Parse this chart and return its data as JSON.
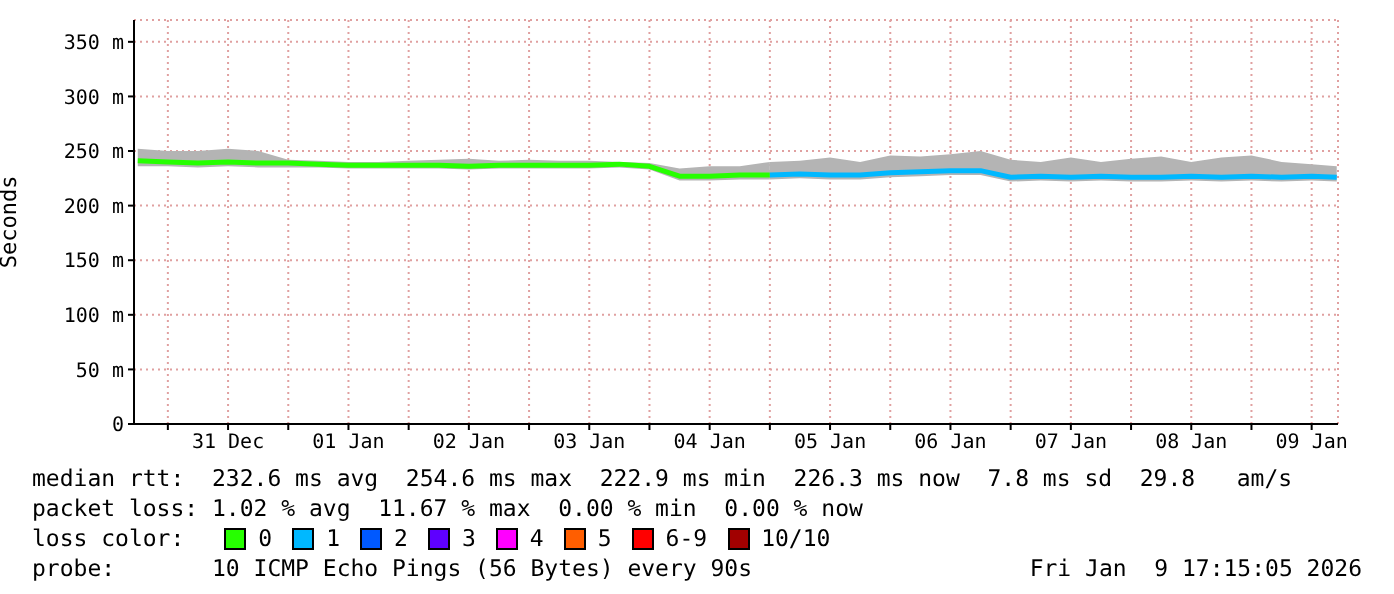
{
  "chart_data": {
    "type": "line",
    "ylabel": "Seconds",
    "legend_title": "loss color:",
    "legend": "bottom",
    "grid": true,
    "marker": "none",
    "line_style": "solid",
    "x": [
      "2025-12-30T18:00",
      "2025-12-31T00:00",
      "2025-12-31T06:00",
      "2025-12-31T12:00",
      "2025-12-31T18:00",
      "2026-01-01T00:00",
      "2026-01-01T06:00",
      "2026-01-01T12:00",
      "2026-01-01T18:00",
      "2026-01-02T00:00",
      "2026-01-02T06:00",
      "2026-01-02T12:00",
      "2026-01-02T18:00",
      "2026-01-03T00:00",
      "2026-01-03T06:00",
      "2026-01-03T12:00",
      "2026-01-03T18:00",
      "2026-01-04T00:00",
      "2026-01-04T06:00",
      "2026-01-04T12:00",
      "2026-01-04T18:00",
      "2026-01-05T00:00",
      "2026-01-05T06:00",
      "2026-01-05T12:00",
      "2026-01-05T18:00",
      "2026-01-06T00:00",
      "2026-01-06T06:00",
      "2026-01-06T12:00",
      "2026-01-06T18:00",
      "2026-01-07T00:00",
      "2026-01-07T06:00",
      "2026-01-07T12:00",
      "2026-01-07T18:00",
      "2026-01-08T00:00",
      "2026-01-08T06:00",
      "2026-01-08T12:00",
      "2026-01-08T18:00",
      "2026-01-09T00:00",
      "2026-01-09T06:00",
      "2026-01-09T12:00",
      "2026-01-09T17:00"
    ],
    "xlim": [
      "2025-12-30T17:15",
      "2026-01-09T17:15"
    ],
    "xticks": [
      {
        "value": "2025-12-31T00:00",
        "label": null
      },
      {
        "value": "2025-12-31T12:00",
        "label": "31 Dec"
      },
      {
        "value": "2026-01-01T00:00",
        "label": null
      },
      {
        "value": "2026-01-01T12:00",
        "label": "01 Jan"
      },
      {
        "value": "2026-01-02T00:00",
        "label": null
      },
      {
        "value": "2026-01-02T12:00",
        "label": "02 Jan"
      },
      {
        "value": "2026-01-03T00:00",
        "label": null
      },
      {
        "value": "2026-01-03T12:00",
        "label": "03 Jan"
      },
      {
        "value": "2026-01-04T00:00",
        "label": null
      },
      {
        "value": "2026-01-04T12:00",
        "label": "04 Jan"
      },
      {
        "value": "2026-01-05T00:00",
        "label": null
      },
      {
        "value": "2026-01-05T12:00",
        "label": "05 Jan"
      },
      {
        "value": "2026-01-06T00:00",
        "label": null
      },
      {
        "value": "2026-01-06T12:00",
        "label": "06 Jan"
      },
      {
        "value": "2026-01-07T00:00",
        "label": null
      },
      {
        "value": "2026-01-07T12:00",
        "label": "07 Jan"
      },
      {
        "value": "2026-01-08T00:00",
        "label": null
      },
      {
        "value": "2026-01-08T12:00",
        "label": "08 Jan"
      },
      {
        "value": "2026-01-09T00:00",
        "label": null
      },
      {
        "value": "2026-01-09T12:00",
        "label": "09 Jan"
      }
    ],
    "ylim": [
      0,
      370
    ],
    "yticks": [
      0,
      {
        "value": 50,
        "label": "50 m"
      },
      {
        "value": 100,
        "label": "100 m"
      },
      {
        "value": 150,
        "label": "150 m"
      },
      {
        "value": 200,
        "label": "200 m"
      },
      {
        "value": 250,
        "label": "250 m"
      },
      {
        "value": 300,
        "label": "300 m"
      },
      {
        "value": 350,
        "label": "350 m"
      }
    ],
    "series": [
      {
        "name": "0",
        "color": "#26ff00",
        "values": [
          241,
          240,
          239,
          240,
          239,
          239,
          238,
          237,
          237,
          237,
          237,
          236,
          237,
          237,
          237,
          237,
          238,
          236,
          227,
          227,
          228,
          228,
          null,
          null,
          null,
          null,
          null,
          null,
          null,
          null,
          null,
          null,
          null,
          null,
          null,
          null,
          null,
          null,
          null,
          null,
          null
        ],
        "lower": [
          236,
          236,
          235,
          236,
          235,
          235,
          235,
          234,
          234,
          234,
          234,
          233,
          234,
          234,
          234,
          234,
          235,
          233,
          223,
          223,
          224,
          224,
          null,
          null,
          null,
          null,
          null,
          null,
          null,
          null,
          null,
          null,
          null,
          null,
          null,
          null,
          null,
          null,
          null,
          null,
          null
        ],
        "upper": [
          252,
          250,
          250,
          252,
          250,
          242,
          241,
          240,
          240,
          241,
          242,
          243,
          241,
          242,
          241,
          241,
          240,
          239,
          234,
          236,
          236,
          240,
          null,
          null,
          null,
          null,
          null,
          null,
          null,
          null,
          null,
          null,
          null,
          null,
          null,
          null,
          null,
          null,
          null,
          null,
          null
        ]
      },
      {
        "name": "1",
        "color": "#00b8ff",
        "values": [
          null,
          null,
          null,
          null,
          null,
          null,
          null,
          null,
          null,
          null,
          null,
          null,
          null,
          null,
          null,
          null,
          null,
          null,
          null,
          null,
          null,
          228,
          229,
          228,
          228,
          230,
          231,
          232,
          232,
          226,
          227,
          226,
          227,
          226,
          226,
          227,
          226,
          227,
          226,
          227,
          226
        ],
        "lower": [
          null,
          null,
          null,
          null,
          null,
          null,
          null,
          null,
          null,
          null,
          null,
          null,
          null,
          null,
          null,
          null,
          null,
          null,
          null,
          null,
          null,
          224,
          225,
          224,
          224,
          226,
          227,
          228,
          228,
          222,
          223,
          222,
          223,
          222,
          222,
          223,
          222,
          223,
          222,
          223,
          222
        ],
        "upper": [
          null,
          null,
          null,
          null,
          null,
          null,
          null,
          null,
          null,
          null,
          null,
          null,
          null,
          null,
          null,
          null,
          null,
          null,
          null,
          null,
          null,
          240,
          241,
          244,
          240,
          246,
          245,
          247,
          250,
          242,
          240,
          244,
          240,
          243,
          245,
          240,
          244,
          246,
          240,
          238,
          236
        ]
      },
      {
        "name": "2",
        "color": "#0059ff",
        "values": [
          null,
          null,
          null,
          null,
          null,
          null,
          null,
          null,
          null,
          null,
          null,
          null,
          null,
          null,
          null,
          null,
          null,
          null,
          null,
          null,
          null,
          null,
          null,
          null,
          null,
          null,
          null,
          null,
          null,
          null,
          null,
          null,
          null,
          null,
          null,
          null,
          null,
          null,
          null,
          null,
          null
        ]
      },
      {
        "name": "3",
        "color": "#5e00ff",
        "values": [
          null,
          null,
          null,
          null,
          null,
          null,
          null,
          null,
          null,
          null,
          null,
          null,
          null,
          null,
          null,
          null,
          null,
          null,
          null,
          null,
          null,
          null,
          null,
          null,
          null,
          null,
          null,
          null,
          null,
          null,
          null,
          null,
          null,
          null,
          null,
          null,
          null,
          null,
          null,
          null,
          null
        ]
      },
      {
        "name": "4",
        "color": "#ff00ff",
        "values": [
          null,
          null,
          null,
          null,
          null,
          null,
          null,
          null,
          null,
          null,
          null,
          null,
          null,
          null,
          null,
          null,
          null,
          null,
          null,
          null,
          null,
          null,
          null,
          null,
          null,
          null,
          null,
          null,
          null,
          null,
          null,
          null,
          null,
          null,
          null,
          null,
          null,
          null,
          null,
          null,
          null
        ]
      },
      {
        "name": "5",
        "color": "#ff5e00",
        "values": [
          null,
          null,
          null,
          null,
          null,
          null,
          null,
          null,
          null,
          null,
          null,
          null,
          null,
          null,
          null,
          null,
          null,
          null,
          null,
          null,
          null,
          null,
          null,
          null,
          null,
          null,
          null,
          null,
          null,
          null,
          null,
          null,
          null,
          null,
          null,
          null,
          null,
          null,
          null,
          null,
          null
        ]
      },
      {
        "name": "6-9",
        "color": "#ff0000",
        "values": [
          null,
          null,
          null,
          null,
          null,
          null,
          null,
          null,
          null,
          null,
          null,
          null,
          null,
          null,
          null,
          null,
          null,
          null,
          null,
          null,
          null,
          null,
          null,
          null,
          null,
          null,
          null,
          null,
          null,
          null,
          null,
          null,
          null,
          null,
          null,
          null,
          null,
          null,
          null,
          null,
          null
        ]
      },
      {
        "name": "10/10",
        "color": "#a10000",
        "values": [
          null,
          null,
          null,
          null,
          null,
          null,
          null,
          null,
          null,
          null,
          null,
          null,
          null,
          null,
          null,
          null,
          null,
          null,
          null,
          null,
          null,
          null,
          null,
          null,
          null,
          null,
          null,
          null,
          null,
          null,
          null,
          null,
          null,
          null,
          null,
          null,
          null,
          null,
          null,
          null,
          null
        ]
      }
    ],
    "annotations": [
      "median rtt:  232.6 ms avg  254.6 ms max  222.9 ms min  226.3 ms now  7.8 ms sd  29.8   am/s",
      "packet loss: 1.02 % avg  11.67 % max  0.00 % min  0.00 % now",
      "probe:       10 ICMP Echo Pings (56 Bytes) every 90s",
      "Fri Jan  9 17:15:05 2026"
    ]
  }
}
